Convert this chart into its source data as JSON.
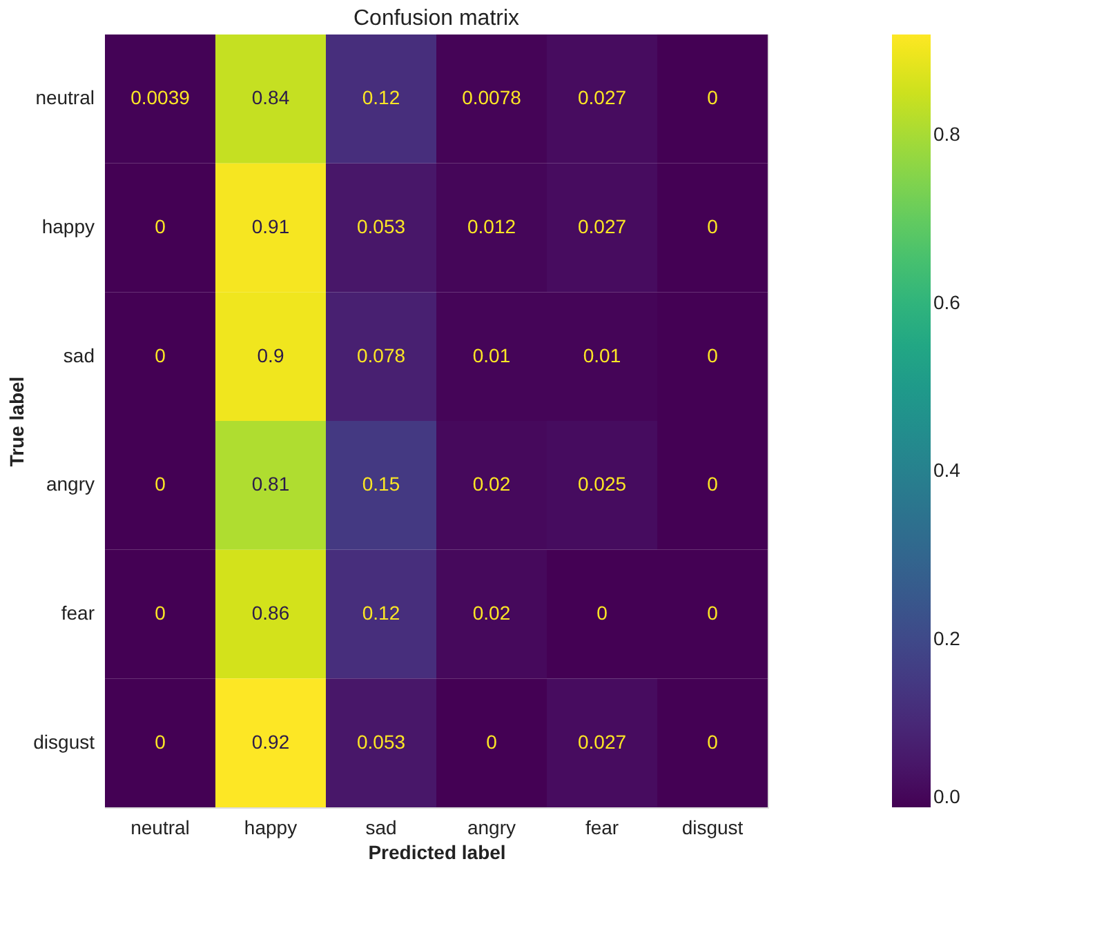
{
  "chart_data": {
    "type": "heatmap",
    "title": "Confusion matrix",
    "xlabel": "Predicted label",
    "ylabel": "True label",
    "categories": [
      "neutral",
      "happy",
      "sad",
      "angry",
      "fear",
      "disgust"
    ],
    "y_categories": [
      "neutral",
      "happy",
      "sad",
      "angry",
      "fear",
      "disgust"
    ],
    "cells": [
      [
        0.0039,
        0.84,
        0.12,
        0.0078,
        0.027,
        0
      ],
      [
        0,
        0.91,
        0.053,
        0.012,
        0.027,
        0
      ],
      [
        0,
        0.9,
        0.078,
        0.01,
        0.01,
        0
      ],
      [
        0,
        0.81,
        0.15,
        0.02,
        0.025,
        0
      ],
      [
        0,
        0.86,
        0.12,
        0.02,
        0,
        0
      ],
      [
        0,
        0.92,
        0.053,
        0,
        0.027,
        0
      ]
    ],
    "data_labels": true,
    "clim": [
      0,
      0.92
    ],
    "cticks": [
      {
        "value": 0,
        "label": "0.0"
      },
      {
        "value": 0.2,
        "label": "0.2"
      },
      {
        "value": 0.4,
        "label": "0.4"
      },
      {
        "value": 0.6,
        "label": "0.6"
      },
      {
        "value": 0.8,
        "label": "0.8"
      }
    ],
    "grid": false
  }
}
